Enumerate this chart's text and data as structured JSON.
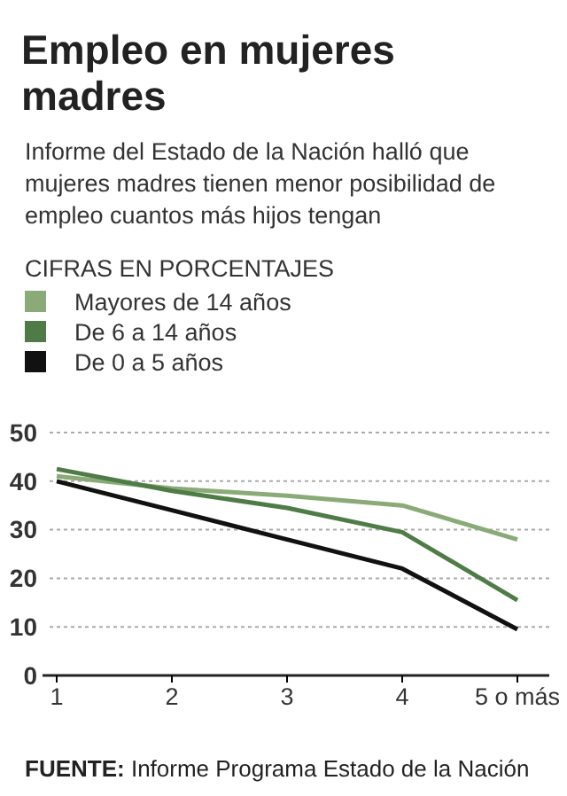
{
  "chart_data": {
    "type": "line",
    "title": "Empleo en mujeres madres",
    "subtitle": "Informe del Estado de la Nación halló que mujeres madres tienen menor posibilidad de empleo cuantos más hijos tengan",
    "legend_title": "CIFRAS EN PORCENTAJES",
    "categories": [
      "1",
      "2",
      "3",
      "4",
      "5 o más"
    ],
    "series": [
      {
        "name": "Mayores de 14 años",
        "color": "#8aab77",
        "values": [
          41,
          38.5,
          37,
          35,
          28
        ]
      },
      {
        "name": "De 6 a 14 años",
        "color": "#4f7c46",
        "values": [
          42.5,
          38,
          34.5,
          29.5,
          15.5
        ]
      },
      {
        "name": "De 0 a 5 años",
        "color": "#111111",
        "values": [
          40,
          34,
          28,
          22,
          9.5
        ]
      }
    ],
    "ylim": [
      0,
      50
    ],
    "yticks": [
      0,
      10,
      20,
      30,
      40,
      50
    ],
    "grid": "y",
    "legend": "top left",
    "line_style": "solid",
    "marker": "none",
    "annotations": [
      "FUENTE: Informe Programa Estado de la Nación"
    ]
  }
}
